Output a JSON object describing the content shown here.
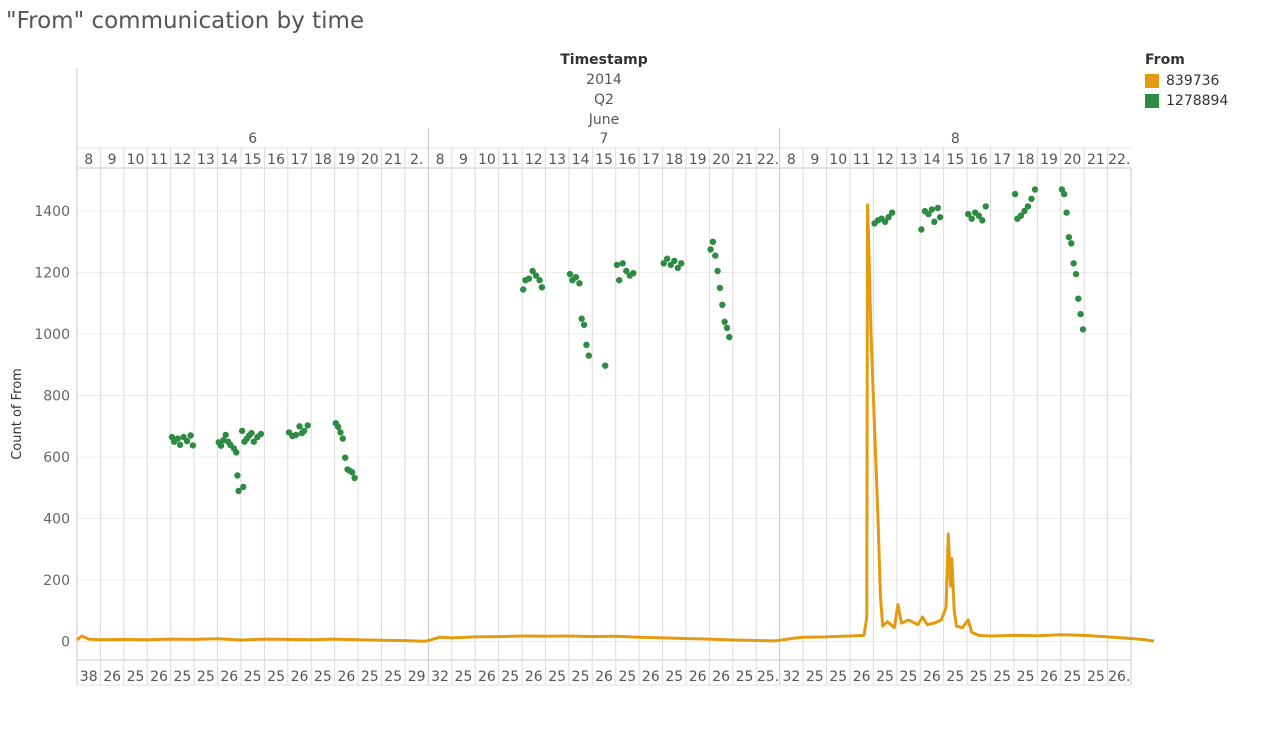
{
  "title": "\"From\" communication by time",
  "legend": {
    "title": "From",
    "items": [
      {
        "label": "839736",
        "color": "#e49b0f"
      },
      {
        "label": "1278894",
        "color": "#2e8b42"
      }
    ]
  },
  "chart_data": {
    "type": "line",
    "ylabel": "Count of From",
    "ylim": [
      -60,
      1540
    ],
    "yticks": [
      0,
      200,
      400,
      600,
      800,
      1000,
      1200,
      1400
    ],
    "header_levels": {
      "field": "Timestamp",
      "year": "2014",
      "quarter": "Q2",
      "month": "June"
    },
    "days": [
      {
        "label": "6",
        "hours": [
          "8",
          "9",
          "10",
          "11",
          "12",
          "13",
          "14",
          "15",
          "16",
          "17",
          "18",
          "19",
          "20",
          "21",
          "2."
        ],
        "bottom": [
          "38",
          "26",
          "25",
          "26",
          "25",
          "25",
          "26",
          "25",
          "25",
          "26",
          "25",
          "26",
          "25",
          "25",
          "29"
        ]
      },
      {
        "label": "7",
        "hours": [
          "8",
          "9",
          "10",
          "11",
          "12",
          "13",
          "14",
          "15",
          "16",
          "17",
          "18",
          "19",
          "20",
          "21",
          "22."
        ],
        "bottom": [
          "32",
          "25",
          "26",
          "25",
          "26",
          "25",
          "25",
          "26",
          "25",
          "26",
          "25",
          "26",
          "26",
          "25",
          "25."
        ]
      },
      {
        "label": "8",
        "hours": [
          "8",
          "9",
          "10",
          "11",
          "12",
          "13",
          "14",
          "15",
          "16",
          "17",
          "18",
          "19",
          "20",
          "21",
          "22."
        ],
        "bottom": [
          "32",
          "25",
          "25",
          "26",
          "25",
          "25",
          "26",
          "25",
          "25",
          "25",
          "25",
          "26",
          "25",
          "25",
          "26."
        ]
      }
    ],
    "series": [
      {
        "name": "839736",
        "mark": "line",
        "points": [
          [
            0,
            5
          ],
          [
            0.2,
            18
          ],
          [
            0.5,
            8
          ],
          [
            1,
            6
          ],
          [
            2,
            7
          ],
          [
            3,
            6
          ],
          [
            4,
            8
          ],
          [
            5,
            7
          ],
          [
            6,
            9
          ],
          [
            7,
            5
          ],
          [
            8,
            8
          ],
          [
            9,
            7
          ],
          [
            10,
            6
          ],
          [
            11,
            8
          ],
          [
            12,
            6
          ],
          [
            13,
            4
          ],
          [
            14,
            3
          ],
          [
            14.8,
            1
          ],
          [
            15,
            3
          ],
          [
            15.5,
            14
          ],
          [
            16,
            12
          ],
          [
            17,
            15
          ],
          [
            18,
            16
          ],
          [
            19,
            18
          ],
          [
            20,
            17
          ],
          [
            21,
            18
          ],
          [
            22,
            16
          ],
          [
            23,
            17
          ],
          [
            24,
            14
          ],
          [
            25,
            12
          ],
          [
            26,
            10
          ],
          [
            27,
            8
          ],
          [
            28,
            5
          ],
          [
            29.8,
            2
          ],
          [
            30,
            4
          ],
          [
            30.5,
            10
          ],
          [
            31,
            14
          ],
          [
            32,
            15
          ],
          [
            33,
            18
          ],
          [
            33.6,
            20
          ],
          [
            33.72,
            80
          ],
          [
            33.75,
            1420
          ],
          [
            33.8,
            1300
          ],
          [
            33.9,
            1000
          ],
          [
            34.05,
            700
          ],
          [
            34.2,
            400
          ],
          [
            34.3,
            150
          ],
          [
            34.4,
            50
          ],
          [
            34.6,
            65
          ],
          [
            34.9,
            45
          ],
          [
            35.05,
            120
          ],
          [
            35.2,
            60
          ],
          [
            35.5,
            70
          ],
          [
            35.9,
            55
          ],
          [
            36.1,
            80
          ],
          [
            36.3,
            55
          ],
          [
            36.6,
            60
          ],
          [
            36.9,
            70
          ],
          [
            37.1,
            110
          ],
          [
            37.2,
            350
          ],
          [
            37.3,
            180
          ],
          [
            37.35,
            270
          ],
          [
            37.45,
            100
          ],
          [
            37.55,
            50
          ],
          [
            37.8,
            45
          ],
          [
            38.05,
            70
          ],
          [
            38.2,
            30
          ],
          [
            38.5,
            20
          ],
          [
            39,
            18
          ],
          [
            40,
            20
          ],
          [
            41,
            19
          ],
          [
            42,
            22
          ],
          [
            43,
            20
          ],
          [
            44,
            15
          ],
          [
            45,
            10
          ],
          [
            45.6,
            6
          ],
          [
            45.8,
            3
          ],
          [
            45.98,
            2
          ]
        ]
      },
      {
        "name": "1278894",
        "mark": "scatter",
        "points": [
          [
            4.05,
            665
          ],
          [
            4.15,
            650
          ],
          [
            4.3,
            660
          ],
          [
            4.4,
            640
          ],
          [
            4.55,
            665
          ],
          [
            4.7,
            652
          ],
          [
            4.85,
            670
          ],
          [
            4.95,
            638
          ],
          [
            6.05,
            648
          ],
          [
            6.15,
            637
          ],
          [
            6.25,
            655
          ],
          [
            6.35,
            672
          ],
          [
            6.45,
            650
          ],
          [
            6.55,
            640
          ],
          [
            6.7,
            628
          ],
          [
            6.8,
            615
          ],
          [
            6.85,
            540
          ],
          [
            6.9,
            490
          ],
          [
            7.05,
            685
          ],
          [
            7.15,
            650
          ],
          [
            7.25,
            660
          ],
          [
            7.35,
            670
          ],
          [
            7.45,
            678
          ],
          [
            7.55,
            650
          ],
          [
            7.7,
            665
          ],
          [
            7.85,
            675
          ],
          [
            7.1,
            503
          ],
          [
            9.05,
            680
          ],
          [
            9.2,
            668
          ],
          [
            9.35,
            672
          ],
          [
            9.5,
            700
          ],
          [
            9.6,
            678
          ],
          [
            9.7,
            685
          ],
          [
            9.85,
            703
          ],
          [
            11.05,
            710
          ],
          [
            11.15,
            698
          ],
          [
            11.25,
            680
          ],
          [
            11.35,
            660
          ],
          [
            11.45,
            598
          ],
          [
            11.55,
            560
          ],
          [
            11.65,
            555
          ],
          [
            11.75,
            550
          ],
          [
            11.85,
            532
          ],
          [
            19.05,
            1145
          ],
          [
            19.15,
            1175
          ],
          [
            19.3,
            1180
          ],
          [
            19.45,
            1205
          ],
          [
            19.6,
            1190
          ],
          [
            19.75,
            1175
          ],
          [
            19.85,
            1152
          ],
          [
            21.05,
            1195
          ],
          [
            21.15,
            1175
          ],
          [
            21.3,
            1185
          ],
          [
            21.45,
            1165
          ],
          [
            21.55,
            1050
          ],
          [
            21.65,
            1030
          ],
          [
            21.75,
            965
          ],
          [
            21.85,
            930
          ],
          [
            22.55,
            897
          ],
          [
            23.05,
            1225
          ],
          [
            23.15,
            1175
          ],
          [
            23.3,
            1230
          ],
          [
            23.45,
            1205
          ],
          [
            23.6,
            1190
          ],
          [
            23.75,
            1198
          ],
          [
            25.05,
            1230
          ],
          [
            25.2,
            1245
          ],
          [
            25.35,
            1225
          ],
          [
            25.5,
            1238
          ],
          [
            25.65,
            1215
          ],
          [
            25.8,
            1230
          ],
          [
            27.05,
            1275
          ],
          [
            27.15,
            1300
          ],
          [
            27.25,
            1255
          ],
          [
            27.35,
            1205
          ],
          [
            27.45,
            1150
          ],
          [
            27.55,
            1095
          ],
          [
            27.65,
            1040
          ],
          [
            27.75,
            1020
          ],
          [
            27.85,
            990
          ],
          [
            34.05,
            1360
          ],
          [
            34.2,
            1370
          ],
          [
            34.35,
            1375
          ],
          [
            34.5,
            1365
          ],
          [
            34.65,
            1380
          ],
          [
            34.8,
            1395
          ],
          [
            36.05,
            1340
          ],
          [
            36.2,
            1400
          ],
          [
            36.35,
            1390
          ],
          [
            36.5,
            1405
          ],
          [
            36.6,
            1365
          ],
          [
            36.75,
            1410
          ],
          [
            36.85,
            1380
          ],
          [
            38.05,
            1390
          ],
          [
            38.2,
            1375
          ],
          [
            38.35,
            1395
          ],
          [
            38.5,
            1385
          ],
          [
            38.65,
            1370
          ],
          [
            38.8,
            1415
          ],
          [
            40.05,
            1455
          ],
          [
            40.15,
            1375
          ],
          [
            40.3,
            1385
          ],
          [
            40.45,
            1400
          ],
          [
            40.6,
            1415
          ],
          [
            40.75,
            1440
          ],
          [
            40.9,
            1470
          ],
          [
            42.05,
            1470
          ],
          [
            42.15,
            1455
          ],
          [
            42.25,
            1395
          ],
          [
            42.35,
            1315
          ],
          [
            42.45,
            1295
          ],
          [
            42.55,
            1230
          ],
          [
            42.65,
            1195
          ],
          [
            42.75,
            1115
          ],
          [
            42.85,
            1065
          ],
          [
            42.95,
            1015
          ]
        ]
      }
    ]
  }
}
